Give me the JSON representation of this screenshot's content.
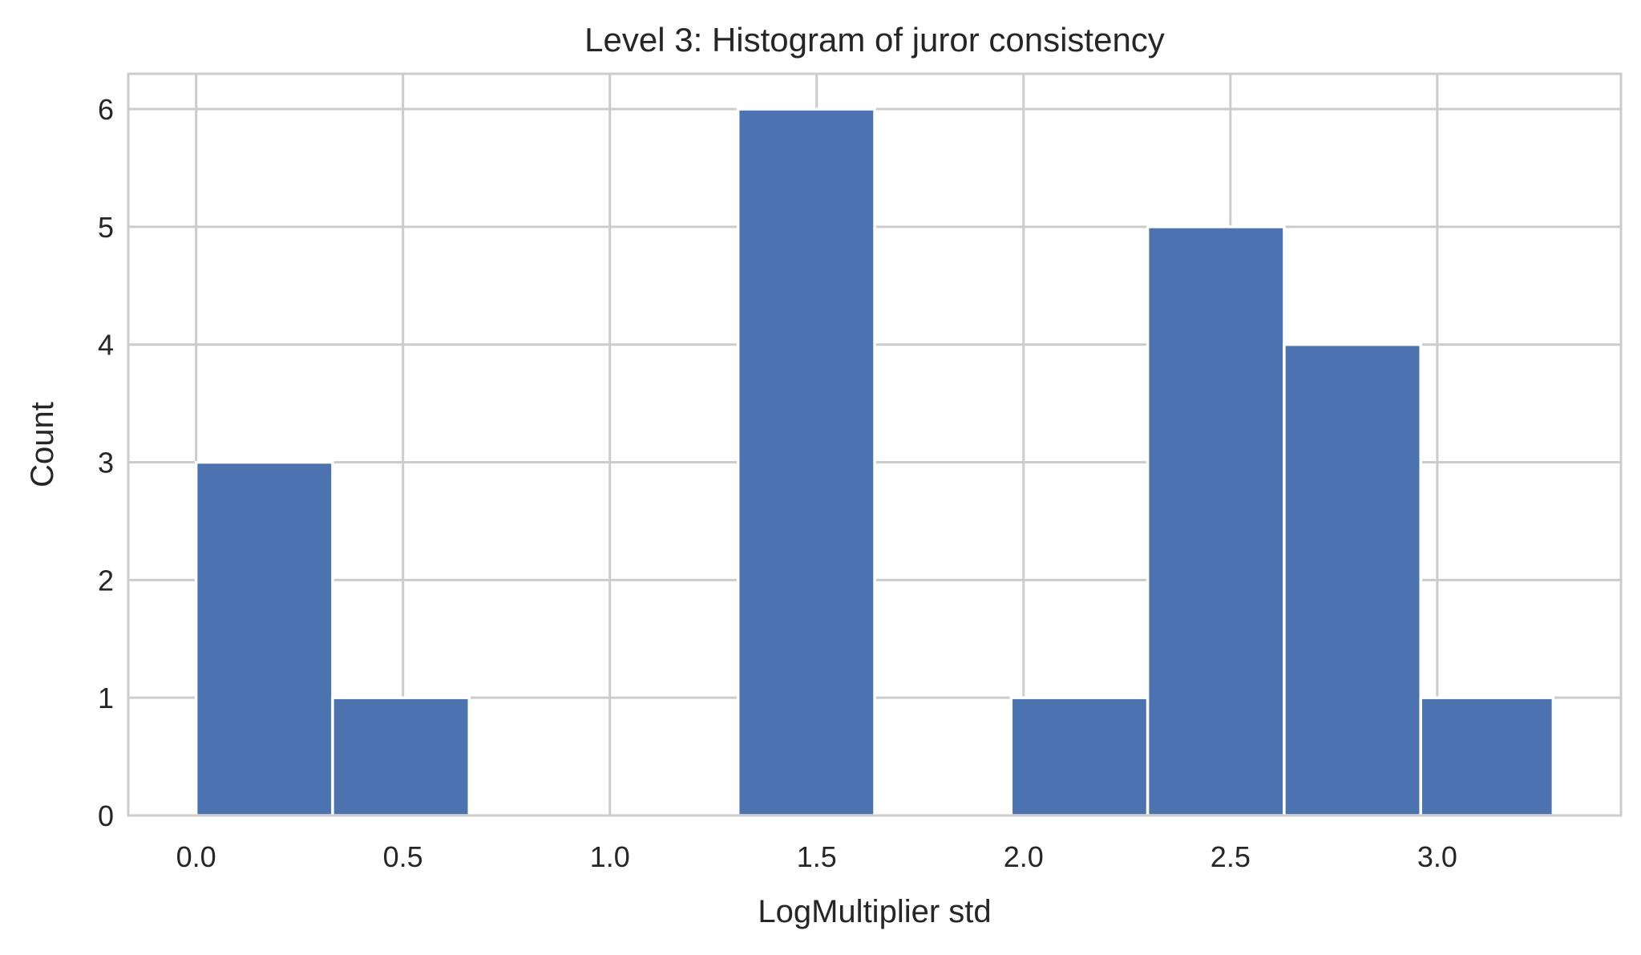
{
  "chart_data": {
    "type": "bar",
    "subtype": "histogram",
    "title": "Level 3: Histogram of juror consistency",
    "xlabel": "LogMultiplier std",
    "ylabel": "Count",
    "bins": [
      {
        "x0": 0.0,
        "x1": 0.33,
        "count": 3
      },
      {
        "x0": 0.33,
        "x1": 0.66,
        "count": 1
      },
      {
        "x0": 0.66,
        "x1": 0.99,
        "count": 0
      },
      {
        "x0": 0.99,
        "x1": 1.31,
        "count": 0
      },
      {
        "x0": 1.31,
        "x1": 1.64,
        "count": 6
      },
      {
        "x0": 1.64,
        "x1": 1.97,
        "count": 0
      },
      {
        "x0": 1.97,
        "x1": 2.3,
        "count": 1
      },
      {
        "x0": 2.3,
        "x1": 2.63,
        "count": 5
      },
      {
        "x0": 2.63,
        "x1": 2.96,
        "count": 4
      },
      {
        "x0": 2.96,
        "x1": 3.28,
        "count": 1
      }
    ],
    "xlim": [
      -0.164,
      3.444
    ],
    "ylim": [
      0,
      6.3
    ],
    "xticks": [
      0.0,
      0.5,
      1.0,
      1.5,
      2.0,
      2.5,
      3.0
    ],
    "xtick_labels": [
      "0.0",
      "0.5",
      "1.0",
      "1.5",
      "2.0",
      "2.5",
      "3.0"
    ],
    "yticks": [
      0,
      1,
      2,
      3,
      4,
      5,
      6
    ],
    "ytick_labels": [
      "0",
      "1",
      "2",
      "3",
      "4",
      "5",
      "6"
    ],
    "grid": true,
    "colors": {
      "bar": "#4c72b0",
      "bar_edge": "#ffffff",
      "grid": "#cccccc",
      "spine": "#cccccc",
      "text": "#262626"
    }
  }
}
